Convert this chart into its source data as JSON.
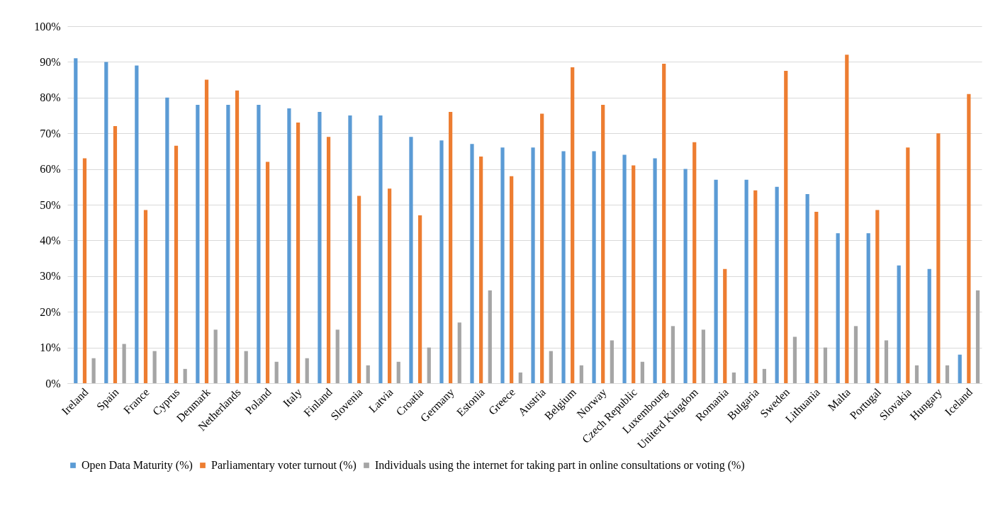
{
  "chart_data": {
    "type": "bar",
    "categories": [
      "Ireland",
      "Spain",
      "France",
      "Cyprus",
      "Denmark",
      "Netherlands",
      "Poland",
      "Italy",
      "Finland",
      "Slovenia",
      "Latvia",
      "Croatia",
      "Germany",
      "Estonia",
      "Greece",
      "Austria",
      "Belgium",
      "Norway",
      "Czech Republic",
      "Luxembourg",
      "Uniterd Kingdom",
      "Romania",
      "Bulgaria",
      "Sweden",
      "Lithuania",
      "Malta",
      "Portugal",
      "Slovakia",
      "Hungary",
      "Iceland"
    ],
    "series": [
      {
        "name": "Open Data Maturity (%)",
        "color": "#5b9bd5",
        "values": [
          91,
          90,
          89,
          80,
          78,
          78,
          78,
          77,
          76,
          75,
          75,
          69,
          68,
          67,
          66,
          66,
          65,
          65,
          64,
          63,
          60,
          57,
          57,
          55,
          53,
          42,
          42,
          33,
          32,
          8
        ]
      },
      {
        "name": "Parliamentary voter turnout (%)",
        "color": "#ed7d31",
        "values": [
          63,
          72,
          48.5,
          66.5,
          85,
          82,
          62,
          73,
          69,
          52.5,
          54.5,
          47,
          76,
          63.5,
          58,
          75.5,
          88.5,
          78,
          61,
          89.5,
          67.5,
          32,
          54,
          87.5,
          48,
          92,
          48.5,
          66,
          70,
          81
        ]
      },
      {
        "name": "Individuals using the internet for taking part in online consultations or voting (%)",
        "color": "#a5a5a5",
        "values": [
          7,
          11,
          9,
          4,
          15,
          9,
          6,
          7,
          15,
          5,
          6,
          10,
          17,
          26,
          3,
          9,
          5,
          12,
          6,
          16,
          15,
          3,
          4,
          13,
          10,
          16,
          12,
          5,
          5,
          26
        ]
      }
    ],
    "ylim": [
      0,
      100
    ],
    "yticks": [
      {
        "value": 0,
        "label": "0%"
      },
      {
        "value": 10,
        "label": "10%"
      },
      {
        "value": 20,
        "label": "20%"
      },
      {
        "value": 30,
        "label": "30%"
      },
      {
        "value": 40,
        "label": "40%"
      },
      {
        "value": 50,
        "label": "50%"
      },
      {
        "value": 60,
        "label": "60%"
      },
      {
        "value": 70,
        "label": "70%"
      },
      {
        "value": 80,
        "label": "80%"
      },
      {
        "value": 90,
        "label": "90%"
      },
      {
        "value": 100,
        "label": "100%"
      }
    ],
    "grid": "y",
    "legend": "bottom"
  }
}
